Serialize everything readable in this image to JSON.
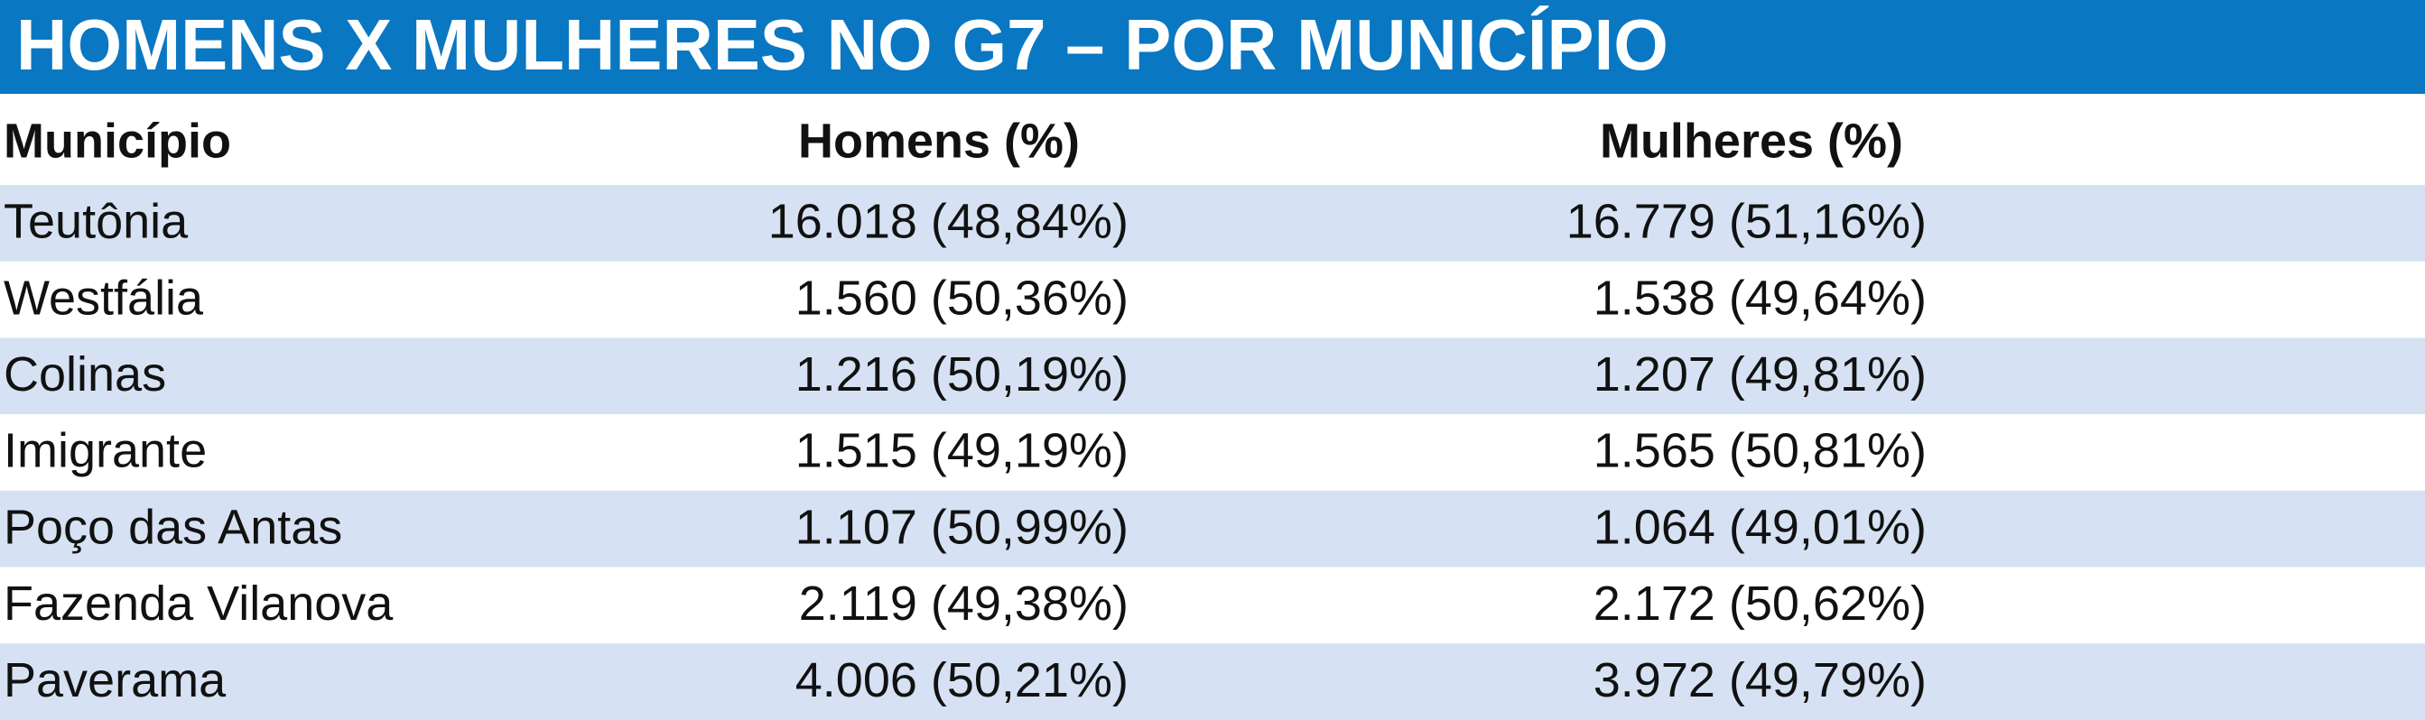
{
  "header": {
    "title": "HOMENS X MULHERES NO G7 – POR MUNICÍPIO"
  },
  "table": {
    "columns": [
      "Município",
      "Homens (%)",
      "Mulheres (%)"
    ],
    "rows": [
      [
        "Teutônia",
        "16.018 (48,84%)",
        "16.779 (51,16%)"
      ],
      [
        "Westfália",
        "1.560 (50,36%)",
        "1.538 (49,64%)"
      ],
      [
        "Colinas",
        "1.216 (50,19%)",
        "1.207 (49,81%)"
      ],
      [
        "Imigrante",
        "1.515 (49,19%)",
        "1.565 (50,81%)"
      ],
      [
        "Poço das Antas",
        "1.107 (50,99%)",
        "1.064 (49,01%)"
      ],
      [
        "Fazenda Vilanova",
        "2.119 (49,38%)",
        "2.172 (50,62%)"
      ],
      [
        "Paverama",
        "4.006 (50,21%)",
        "3.972 (49,79%)"
      ]
    ]
  }
}
